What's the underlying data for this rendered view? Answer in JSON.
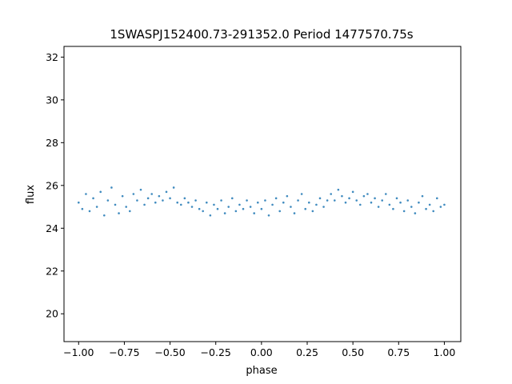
{
  "chart_data": {
    "type": "scatter",
    "title": "1SWASPJ152400.73-291352.0 Period 1477570.75s",
    "xlabel": "phase",
    "ylabel": "flux",
    "xlim": [
      -1.08,
      1.09
    ],
    "ylim": [
      18.7,
      32.5
    ],
    "xticks": [
      -1.0,
      -0.75,
      -0.5,
      -0.25,
      0.0,
      0.25,
      0.5,
      0.75,
      1.0
    ],
    "xtick_labels": [
      "−1.00",
      "−0.75",
      "−0.50",
      "−0.25",
      "0.00",
      "0.25",
      "0.50",
      "0.75",
      "1.00"
    ],
    "yticks": [
      20,
      22,
      24,
      26,
      28,
      30,
      32
    ],
    "ytick_labels": [
      "20",
      "22",
      "24",
      "26",
      "28",
      "30",
      "32"
    ],
    "grid": false,
    "color": "#1f77b4",
    "series": [
      {
        "x": [
          -1.0,
          -0.98,
          -0.96,
          -0.94,
          -0.92,
          -0.9,
          -0.88,
          -0.86,
          -0.84,
          -0.82,
          -0.8,
          -0.78,
          -0.76,
          -0.74,
          -0.72,
          -0.7,
          -0.68,
          -0.66,
          -0.64,
          -0.62,
          -0.6,
          -0.58,
          -0.56,
          -0.54,
          -0.52,
          -0.5,
          -0.48,
          -0.46,
          -0.44,
          -0.42,
          -0.4,
          -0.38,
          -0.36,
          -0.34,
          -0.32,
          -0.3,
          -0.28,
          -0.26,
          -0.24,
          -0.22,
          -0.2,
          -0.18,
          -0.16,
          -0.14,
          -0.12,
          -0.1,
          -0.08,
          -0.06,
          -0.04,
          -0.02,
          0.0,
          0.02,
          0.04,
          0.06,
          0.08,
          0.1,
          0.12,
          0.14,
          0.16,
          0.18,
          0.2,
          0.22,
          0.24,
          0.26,
          0.28,
          0.3,
          0.32,
          0.34,
          0.36,
          0.38,
          0.4,
          0.42,
          0.44,
          0.46,
          0.48,
          0.5,
          0.52,
          0.54,
          0.56,
          0.58,
          0.6,
          0.62,
          0.64,
          0.66,
          0.68,
          0.7,
          0.72,
          0.74,
          0.76,
          0.78,
          0.8,
          0.82,
          0.84,
          0.86,
          0.88,
          0.9,
          0.92,
          0.94,
          0.96,
          0.98,
          1.0
        ],
        "y": [
          25.2,
          24.9,
          25.6,
          24.8,
          25.4,
          25.0,
          25.7,
          24.6,
          25.3,
          25.9,
          25.1,
          24.7,
          25.5,
          25.0,
          24.8,
          25.6,
          25.3,
          25.8,
          25.1,
          25.4,
          25.6,
          25.2,
          25.5,
          25.3,
          25.7,
          25.4,
          25.9,
          25.2,
          25.1,
          25.4,
          25.2,
          25.0,
          25.3,
          24.9,
          24.8,
          25.2,
          24.6,
          25.1,
          24.9,
          25.3,
          24.7,
          25.0,
          25.4,
          24.8,
          25.1,
          24.9,
          25.3,
          25.0,
          24.7,
          25.2,
          24.9,
          25.3,
          24.6,
          25.1,
          25.4,
          24.8,
          25.2,
          25.5,
          25.0,
          24.7,
          25.3,
          25.6,
          24.9,
          25.2,
          24.8,
          25.1,
          25.4,
          25.0,
          25.3,
          25.6,
          25.3,
          25.8,
          25.5,
          25.2,
          25.4,
          25.7,
          25.3,
          25.1,
          25.5,
          25.6,
          25.2,
          25.4,
          25.0,
          25.3,
          25.6,
          25.1,
          24.9,
          25.4,
          25.2,
          24.8,
          25.3,
          25.0,
          24.7,
          25.2,
          25.5,
          24.9,
          25.1,
          24.8,
          25.4,
          25.0,
          25.1
        ]
      }
    ]
  }
}
